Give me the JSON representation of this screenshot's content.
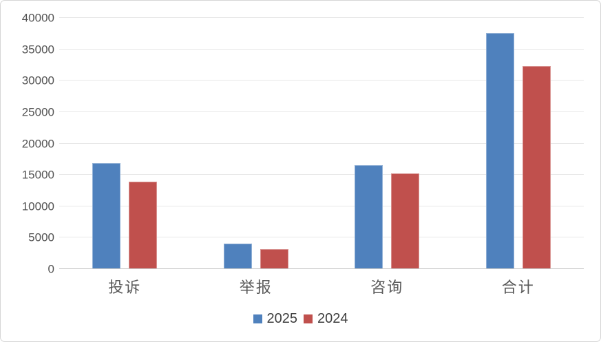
{
  "chart_data": {
    "type": "bar",
    "title": "",
    "categories": [
      "投诉",
      "举报",
      "咨询",
      "合计"
    ],
    "series": [
      {
        "name": "2025",
        "color": "#4F81BD",
        "values": [
          16900,
          4100,
          16600,
          37600
        ]
      },
      {
        "name": "2024",
        "color": "#C0504D",
        "values": [
          13900,
          3200,
          15200,
          32300
        ]
      }
    ],
    "ylim": [
      0,
      40000
    ],
    "yticks": [
      0,
      5000,
      10000,
      15000,
      20000,
      25000,
      30000,
      35000,
      40000
    ],
    "grid": "horizontal",
    "legend_position": "bottom",
    "colors": {
      "gridline": "#E7E7E7",
      "axis_line": "#C9C9C9",
      "axis_text": "#545454",
      "category_text": "#595959",
      "legend_text": "#3F3F3F",
      "frame_border": "#D6D6D6",
      "background": "#FFFFFF"
    }
  }
}
